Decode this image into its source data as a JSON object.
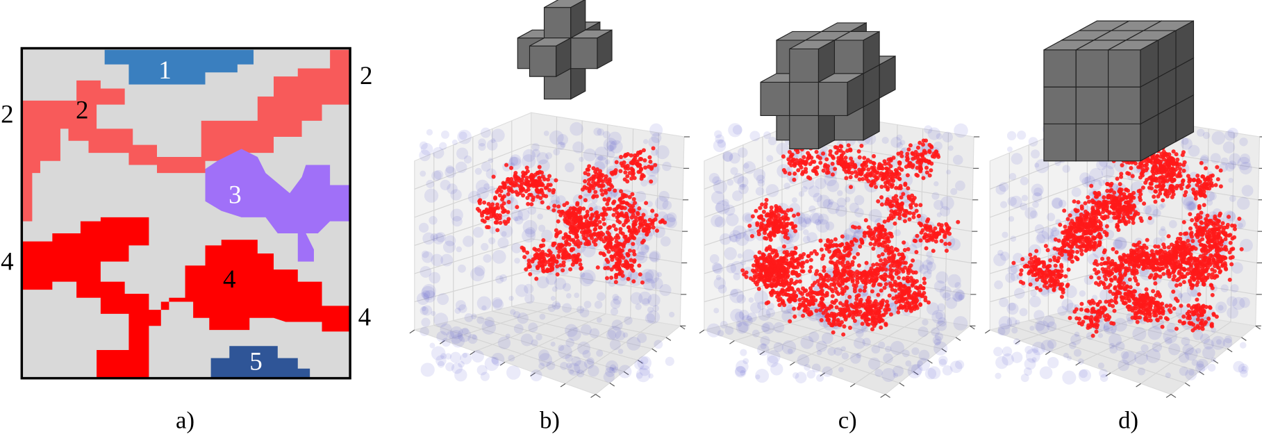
{
  "panel_a": {
    "cluster_labels": [
      "1",
      "2",
      "3",
      "4",
      "5"
    ],
    "left_labels": [
      "2",
      "4"
    ],
    "right_labels": [
      "2",
      "4"
    ]
  },
  "captions": [
    "a)",
    "b)",
    "c)",
    "d)"
  ]
}
